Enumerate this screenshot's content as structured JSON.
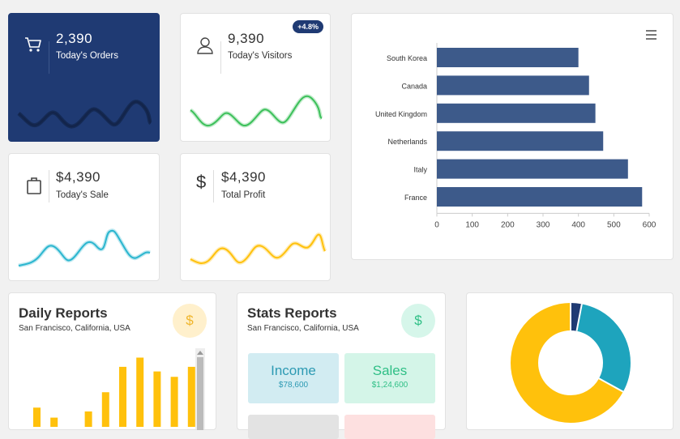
{
  "stats": {
    "orders": {
      "value": "2,390",
      "label": "Today's Orders"
    },
    "visitors": {
      "value": "9,390",
      "label": "Today's Visitors",
      "badge": "+4.8%"
    },
    "sale": {
      "value": "$4,390",
      "label": "Today's Sale"
    },
    "profit": {
      "value": "$4,390",
      "label": "Total Profit",
      "icon_glyph": "$"
    }
  },
  "icons": {
    "orders": "cart-icon",
    "visitors": "user-icon",
    "sale": "shopping-bag-icon",
    "profit": "dollar-icon",
    "chart_menu": "hamburger-menu-icon"
  },
  "colors": {
    "navy": "#1f3a73",
    "bar": "#3d5a8a",
    "green": "#3cc05a",
    "teal": "#2bb6cf",
    "yellow": "#ffc10c",
    "donut_teal": "#1ea4bd",
    "donut_navy": "#1f3a73"
  },
  "chart_data": [
    {
      "type": "bar",
      "orientation": "horizontal",
      "categories": [
        "South Korea",
        "Canada",
        "United Kingdom",
        "Netherlands",
        "Italy",
        "France"
      ],
      "values": [
        400,
        430,
        448,
        470,
        540,
        580
      ],
      "xlim": [
        0,
        600
      ],
      "xticks": [
        "0",
        "100",
        "200",
        "300",
        "400",
        "500",
        "600"
      ],
      "grid": false
    },
    {
      "type": "bar",
      "values": [
        25,
        12,
        null,
        20,
        45,
        78,
        90,
        72,
        65,
        78
      ],
      "ylim": [
        0,
        100
      ]
    },
    {
      "type": "pie",
      "donut": true,
      "values": [
        3,
        30,
        67
      ],
      "colors": [
        "#1f3a73",
        "#1ea4bd",
        "#ffc10c"
      ]
    }
  ],
  "daily": {
    "title": "Daily Reports",
    "location": "San Francisco, California, USA",
    "coin": "$"
  },
  "stats_reports": {
    "title": "Stats Reports",
    "location": "San Francisco, California, USA",
    "coin": "$",
    "income": {
      "label": "Income",
      "value": "$78,600"
    },
    "sales": {
      "label": "Sales",
      "value": "$1,24,600"
    }
  }
}
